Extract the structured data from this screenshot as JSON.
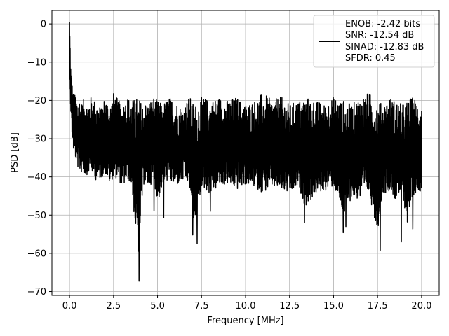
{
  "chart_data": {
    "type": "line",
    "xlabel": "Frequency [MHz]",
    "ylabel": "PSD [dB]",
    "xlim": [
      -1.0,
      21.0
    ],
    "ylim": [
      -71.0,
      3.5
    ],
    "xticks": [
      0.0,
      2.5,
      5.0,
      7.5,
      10.0,
      12.5,
      15.0,
      17.5,
      20.0
    ],
    "xtick_labels": [
      "0.0",
      "2.5",
      "5.0",
      "7.5",
      "10.0",
      "12.5",
      "15.0",
      "17.5",
      "20.0"
    ],
    "yticks": [
      0,
      -10,
      -20,
      -30,
      -40,
      -50,
      -60,
      -70
    ],
    "ytick_labels": [
      "0",
      "−10",
      "−20",
      "−30",
      "−40",
      "−50",
      "−60",
      "−70"
    ],
    "grid": true,
    "legend_position": "top-right",
    "series": [
      {
        "color": "#000000",
        "x": [
          0.0,
          0.02,
          0.05,
          0.08,
          0.12,
          0.18,
          0.25,
          0.35,
          0.45,
          0.55,
          0.65,
          0.75,
          0.9,
          1.0,
          1.2,
          1.5,
          1.8,
          2.0,
          2.3,
          2.5,
          2.8,
          3.0,
          3.3,
          3.5,
          3.9,
          4.2,
          4.5,
          4.8,
          5.0,
          5.3,
          5.6,
          6.0,
          6.4,
          6.8,
          7.0,
          7.2,
          7.5,
          8.0,
          8.5,
          9.0,
          9.5,
          10.0,
          10.5,
          11.0,
          11.5,
          12.0,
          12.5,
          13.0,
          13.4,
          14.0,
          14.5,
          15.0,
          15.6,
          16.0,
          16.5,
          17.0,
          17.5,
          17.8,
          18.2,
          18.5,
          18.9,
          19.2,
          19.5,
          19.8,
          20.0
        ],
        "upper": [
          0.5,
          -2,
          -8,
          -12,
          -14,
          -17,
          -19,
          -18,
          -20,
          -19,
          -21,
          -20,
          -19,
          -21,
          -19,
          -20,
          -22,
          -19,
          -21,
          -18,
          -20,
          -21,
          -19,
          -20,
          -19,
          -21,
          -20,
          -19,
          -20,
          -21,
          -19,
          -20,
          -22,
          -19,
          -20,
          -21,
          -19,
          -20,
          -19,
          -20,
          -19,
          -21,
          -20,
          -18,
          -20,
          -19,
          -21,
          -20,
          -19,
          -20,
          -21,
          -19,
          -20,
          -21,
          -19,
          -18,
          -20,
          -21,
          -19,
          -20,
          -21,
          -20,
          -19,
          -20,
          -21
        ],
        "lower": [
          -10,
          -15,
          -22,
          -26,
          -30,
          -34,
          -36,
          -38,
          -40,
          -41,
          -42,
          -40,
          -43,
          -42,
          -41,
          -44,
          -43,
          -42,
          -45,
          -43,
          -44,
          -46,
          -44,
          -45,
          -67,
          -45,
          -46,
          -44,
          -51,
          -45,
          -44,
          -46,
          -44,
          -45,
          -55,
          -57,
          -46,
          -48,
          -46,
          -45,
          -47,
          -45,
          -46,
          -48,
          -46,
          -47,
          -48,
          -46,
          -52,
          -48,
          -47,
          -46,
          -55,
          -49,
          -50,
          -48,
          -59,
          -48,
          -47,
          -50,
          -48,
          -57,
          -49,
          -47,
          -47
        ],
        "dips": [
          [
            3.95,
            -67.3
          ],
          [
            4.8,
            -48.9
          ],
          [
            5.35,
            -50.7
          ],
          [
            7.0,
            -55.2
          ],
          [
            7.25,
            -57.5
          ],
          [
            8.0,
            -49.0
          ],
          [
            13.35,
            -52.0
          ],
          [
            15.55,
            -54.6
          ],
          [
            15.7,
            -53.0
          ],
          [
            17.65,
            -59.2
          ],
          [
            18.85,
            -57.0
          ],
          [
            19.5,
            -53.6
          ]
        ]
      }
    ]
  },
  "legend": {
    "lines": [
      "ENOB: -2.42 bits",
      "SNR: -12.54 dB",
      "SINAD: -12.83 dB",
      "SFDR: 0.45"
    ]
  }
}
